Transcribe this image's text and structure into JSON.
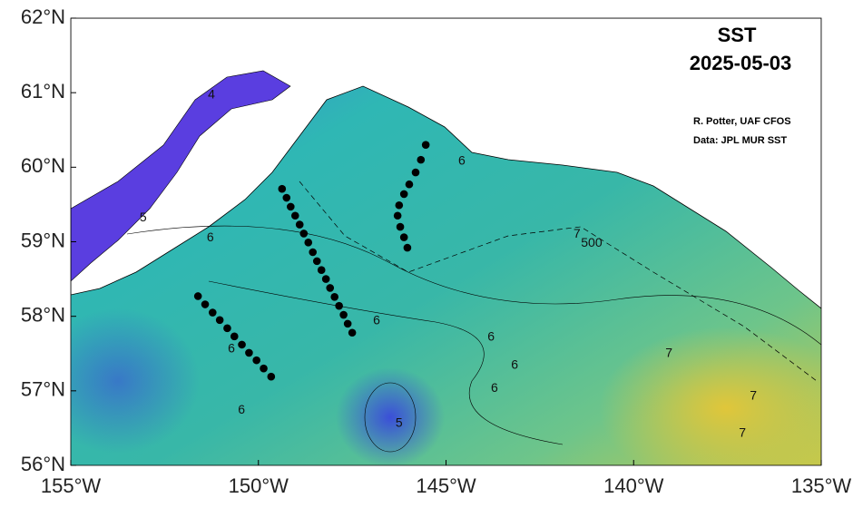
{
  "map": {
    "title": "SST",
    "date": "2025-05-03",
    "credits": [
      "R. Potter, UAF CFOS",
      "Data: JPL MUR SST"
    ],
    "xlim": [
      -155,
      -135
    ],
    "ylim": [
      56,
      62
    ],
    "xticks": [
      {
        "value": -155,
        "label": "155°W"
      },
      {
        "value": -150,
        "label": "150°W"
      },
      {
        "value": -145,
        "label": "145°W"
      },
      {
        "value": -140,
        "label": "140°W"
      },
      {
        "value": -135,
        "label": "135°W"
      }
    ],
    "yticks": [
      {
        "value": 56,
        "label": "56°N"
      },
      {
        "value": 57,
        "label": "57°N"
      },
      {
        "value": 58,
        "label": "58°N"
      },
      {
        "value": 59,
        "label": "59°N"
      },
      {
        "value": 60,
        "label": "60°N"
      },
      {
        "value": 61,
        "label": "61°N"
      },
      {
        "value": 62,
        "label": "62°N"
      }
    ],
    "stations": [
      {
        "lon": [
          -151.61,
          -151.42,
          -151.22,
          -151.03,
          -150.83,
          -150.64,
          -150.44,
          -150.25,
          -150.05,
          -149.86,
          -149.66
        ],
        "lat": [
          58.27,
          58.16,
          58.05,
          57.95,
          57.84,
          57.73,
          57.62,
          57.51,
          57.41,
          57.3,
          57.19
        ]
      },
      {
        "lon": [
          -149.37,
          -149.25,
          -149.14,
          -149.02,
          -148.9,
          -148.79,
          -148.67,
          -148.55,
          -148.44,
          -148.32,
          -148.2,
          -148.09,
          -147.97,
          -147.85,
          -147.73,
          -147.62,
          -147.5
        ],
        "lat": [
          59.71,
          59.59,
          59.47,
          59.35,
          59.23,
          59.11,
          58.99,
          58.86,
          58.74,
          58.62,
          58.5,
          58.38,
          58.26,
          58.14,
          58.02,
          57.9,
          57.78
        ]
      },
      {
        "lon": [
          -145.54,
          -145.67,
          -145.81,
          -145.98,
          -146.12,
          -146.25,
          -146.29,
          -146.22,
          -146.12,
          -146.03
        ],
        "lat": [
          60.3,
          60.1,
          59.93,
          59.77,
          59.64,
          59.49,
          59.35,
          59.2,
          59.06,
          58.92
        ]
      }
    ],
    "contour_labels": [
      {
        "value": 6,
        "lon": -144.58,
        "lat": 60.08
      },
      {
        "value": 5,
        "lon": -153.07,
        "lat": 59.32
      },
      {
        "value": 6,
        "lon": -151.28,
        "lat": 59.05
      },
      {
        "value": 6,
        "lon": -150.72,
        "lat": 57.56
      },
      {
        "value": 6,
        "lon": -150.45,
        "lat": 56.74
      },
      {
        "value": 5,
        "lon": -146.25,
        "lat": 56.56
      },
      {
        "value": 6,
        "lon": -143.8,
        "lat": 57.72
      },
      {
        "value": 6,
        "lon": -143.17,
        "lat": 57.34
      },
      {
        "value": 6,
        "lon": -143.71,
        "lat": 57.03
      },
      {
        "value": 6,
        "lon": -146.85,
        "lat": 57.94
      },
      {
        "value": 7,
        "lon": -141.51,
        "lat": 59.1
      },
      {
        "value": 500,
        "lon": -141.12,
        "lat": 58.98
      },
      {
        "value": 7,
        "lon": -139.06,
        "lat": 57.5
      },
      {
        "value": 7,
        "lon": -136.81,
        "lat": 56.93
      },
      {
        "value": 7,
        "lon": -137.1,
        "lat": 56.43
      },
      {
        "value": 4,
        "lon": -151.25,
        "lat": 60.97
      }
    ]
  }
}
